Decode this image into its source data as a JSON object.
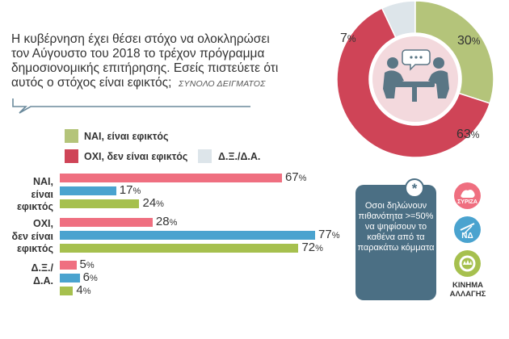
{
  "question": {
    "text": "Η κυβέρνηση έχει θέσει στόχο να ολοκληρώσει τον Αύγουστο του 2018 το τρέχον πρόγραμμα δημοσιονομικής επιτήρησης. Εσείς πιστεύετε ότι αυτός ο στόχος είναι εφικτός;",
    "subtitle": "ΣΥΝΟΛΟ ΔΕΙΓΜΑΤΟΣ"
  },
  "legend": [
    {
      "label": "ΝΑΙ, είναι εφικτός",
      "color": "#b4c47a"
    },
    {
      "label": "ΟΧΙ, δεν είναι εφικτός",
      "color": "#cf4457"
    },
    {
      "label": "Δ.Ξ./Δ.Α.",
      "color": "#dde5ea"
    }
  ],
  "groups": [
    {
      "label_line1": "ΝΑΙ,",
      "label_line2": "είναι",
      "label_line3": "εφικτός"
    },
    {
      "label_line1": "ΟΧΙ,",
      "label_line2": "δεν είναι",
      "label_line3": "εφικτός"
    },
    {
      "label_line1": "Δ.Ξ./",
      "label_line2": "Δ.Α.",
      "label_line3": ""
    }
  ],
  "colors": {
    "pink": "#ef6f80",
    "blue": "#4aa3cf",
    "green": "#a6c04e",
    "ring_red": "#cf4457",
    "ring_green": "#b4c47a",
    "ring_light": "#dde5ea",
    "note_bg": "#4b6f84"
  },
  "chart_data": [
    {
      "type": "pie",
      "title": "",
      "slices": [
        {
          "label": "ΝΑΙ, είναι εφικτός",
          "value": 30,
          "color": "#b4c47a"
        },
        {
          "label": "ΟΧΙ, δεν είναι εφικτός",
          "value": 63,
          "color": "#cf4457"
        },
        {
          "label": "Δ.Ξ./Δ.Α.",
          "value": 7,
          "color": "#dde5ea"
        }
      ],
      "value_labels": [
        "30",
        "63",
        "7"
      ],
      "unit": "%"
    },
    {
      "type": "bar",
      "title": "",
      "orientation": "horizontal",
      "categories": [
        "ΝΑΙ, είναι εφικτός",
        "ΟΧΙ, δεν είναι εφικτός",
        "Δ.Ξ./Δ.Α."
      ],
      "series": [
        {
          "color": "#ef6f80",
          "values": [
            67,
            28,
            5
          ]
        },
        {
          "color": "#4aa3cf",
          "values": [
            17,
            77,
            6
          ]
        },
        {
          "color": "#a6c04e",
          "values": [
            24,
            72,
            4
          ]
        }
      ],
      "unit": "%",
      "xlim": [
        0,
        77
      ],
      "grid": false
    }
  ],
  "note": {
    "star": "*",
    "text": "Οσοι δηλώνουν πιθανότητα >=50% να ψηφίσουν το καθένα από τα παρακάτω κόμματα"
  },
  "parties": [
    {
      "icon": "syriza-logo-icon",
      "text": "ΣΥΡΙΖΑ",
      "color": "#ef6f80"
    },
    {
      "icon": "nd-logo-icon",
      "text": "ΝΔ",
      "color": "#4aa3cf"
    },
    {
      "icon": "kinal-logo-icon",
      "text": "ΚΙΝΗΜΑ ΑΛΛΑΓΗΣ",
      "color": "#a6c04e"
    }
  ]
}
